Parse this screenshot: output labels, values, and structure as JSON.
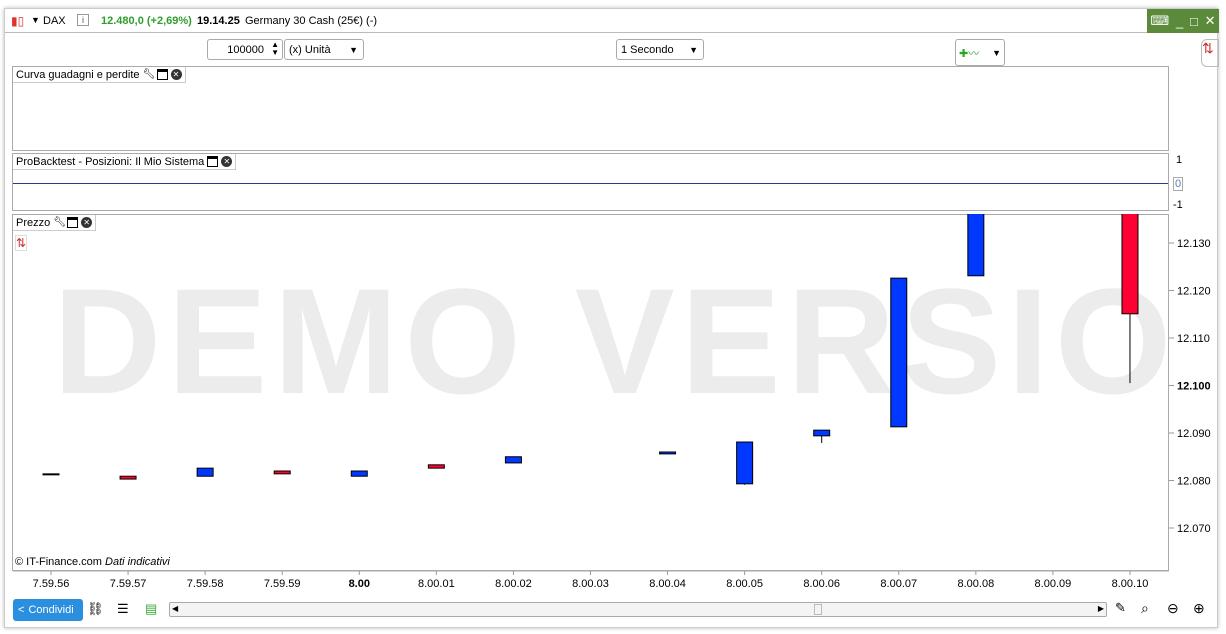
{
  "header": {
    "instrument": "DAX",
    "price_change": "12.480,0 (+2,69%)",
    "time": "19.14.25",
    "description": "Germany 30 Cash (25€) (-)",
    "info_icon": "i",
    "accent": "#2e9e2e"
  },
  "toolbar": {
    "quantity": "100000",
    "unit": "(x) Unità",
    "interval": "1 Secondo"
  },
  "panels": {
    "pnl": "Curva guadagni e perdite",
    "positions": "ProBacktest - Posizioni: Il Mio Sistema",
    "price": "Prezzo"
  },
  "positions_axis": [
    "1",
    "0",
    "-1"
  ],
  "watermark": "DEMO VERSION",
  "copyright": "© IT-Finance.com",
  "disclaimer": "Dati indicativi",
  "footer": {
    "share": "Condividi"
  },
  "chart_data": {
    "type": "candlestick",
    "ylim": [
      12.063,
      12.137
    ],
    "y_ticks": [
      "12.130",
      "12.120",
      "12.110",
      "12.100",
      "12.090",
      "12.080",
      "12.070"
    ],
    "current_price": "12.100",
    "categories": [
      "7.59.56",
      "7.59.57",
      "7.59.58",
      "7.59.59",
      "8.00",
      "8.00.01",
      "8.00.02",
      "8.00.03",
      "8.00.04",
      "8.00.05",
      "8.00.06",
      "8.00.07",
      "8.00.08",
      "8.00.09",
      "8.00.10"
    ],
    "candles": [
      {
        "o": 12.0814,
        "c": 12.0814,
        "l": 12.0814,
        "h": 12.0814
      },
      {
        "o": 12.0809,
        "c": 12.0803,
        "l": 12.0803,
        "h": 12.0809
      },
      {
        "o": 12.0809,
        "c": 12.0826,
        "l": 12.0809,
        "h": 12.0826
      },
      {
        "o": 12.082,
        "c": 12.0814,
        "l": 12.0814,
        "h": 12.082
      },
      {
        "o": 12.0809,
        "c": 12.082,
        "l": 12.0809,
        "h": 12.082
      },
      {
        "o": 12.0833,
        "c": 12.0826,
        "l": 12.0826,
        "h": 12.0833
      },
      {
        "o": 12.0837,
        "c": 12.085,
        "l": 12.0837,
        "h": 12.085
      },
      null,
      {
        "o": 12.0856,
        "c": 12.086,
        "l": 12.0856,
        "h": 12.086
      },
      {
        "o": 12.0793,
        "c": 12.0881,
        "l": 12.0791,
        "h": 12.0881
      },
      {
        "o": 12.0894,
        "c": 12.0906,
        "l": 12.0879,
        "h": 12.0906
      },
      {
        "o": 12.0913,
        "c": 12.1226,
        "l": 12.0913,
        "h": 12.1226
      },
      {
        "o": 12.1231,
        "c": 12.137,
        "l": 12.1231,
        "h": 12.137
      },
      null,
      {
        "o": 12.137,
        "c": 12.1151,
        "l": 12.1005,
        "h": 12.137
      }
    ],
    "up_color": "#0038ff",
    "down_color": "#ff0033"
  }
}
